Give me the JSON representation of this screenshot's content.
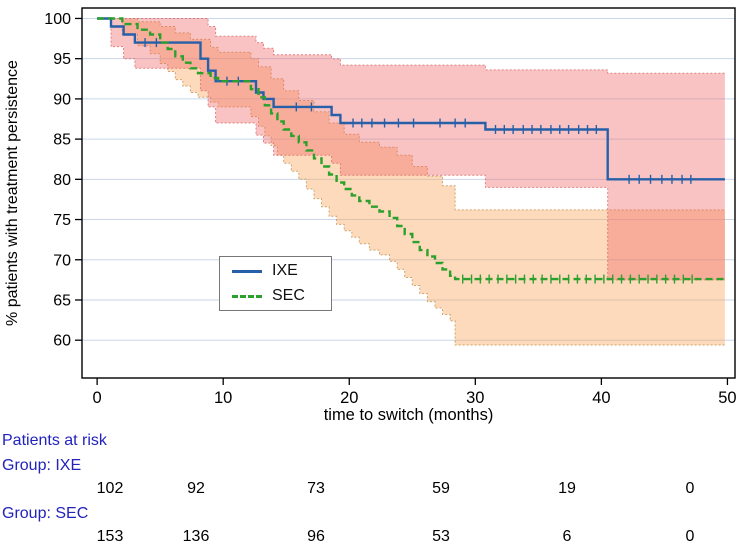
{
  "chart_data": {
    "type": "line",
    "subtype": "kaplan-meier-step-with-ci",
    "title": "",
    "xlabel": "time to switch (months)",
    "ylabel": "% patients with treatment persistence",
    "xlim": [
      -1.2,
      50.6
    ],
    "ylim": [
      55.3,
      101.3
    ],
    "xticks": [
      0,
      10,
      20,
      30,
      40,
      50
    ],
    "yticks": [
      60,
      65,
      70,
      75,
      80,
      85,
      90,
      95,
      100
    ],
    "grid": "horizontal",
    "grid_color": "#c9d6ea",
    "axis_color": "#000000",
    "legend": {
      "position": "inside-lower-left-center",
      "entries": [
        {
          "label": "IXE",
          "style": "solid"
        },
        {
          "label": "SEC",
          "style": "dashed"
        }
      ]
    },
    "series": [
      {
        "name": "IXE",
        "line_color": "#2760a8",
        "line_style": "solid",
        "band_color": "rgba(239,106,106,0.40)",
        "band_edge_color": "rgba(224,110,110,0.85)",
        "steps": [
          [
            0,
            100
          ],
          [
            1.1,
            99
          ],
          [
            2.1,
            98
          ],
          [
            3,
            97
          ],
          [
            8.2,
            95
          ],
          [
            8.8,
            93.5
          ],
          [
            9.4,
            92.2
          ],
          [
            12.6,
            90.8
          ],
          [
            13.2,
            90
          ],
          [
            14,
            89
          ],
          [
            18.6,
            88
          ],
          [
            19.3,
            87
          ],
          [
            30.8,
            86.2
          ],
          [
            40.5,
            80
          ],
          [
            49.8,
            80
          ]
        ],
        "ci_upper": [
          [
            0,
            100
          ],
          [
            8.2,
            100
          ],
          [
            8.8,
            99
          ],
          [
            9.4,
            97.8
          ],
          [
            12.6,
            97
          ],
          [
            13.2,
            96.3
          ],
          [
            14,
            95.5
          ],
          [
            18.6,
            95
          ],
          [
            19.3,
            94.2
          ],
          [
            30.8,
            93.6
          ],
          [
            40.5,
            93.2
          ],
          [
            49.8,
            93.2
          ]
        ],
        "ci_lower": [
          [
            0,
            100
          ],
          [
            1.1,
            96.5
          ],
          [
            2.1,
            95
          ],
          [
            3,
            93.8
          ],
          [
            8.2,
            91
          ],
          [
            8.8,
            89
          ],
          [
            9.4,
            87
          ],
          [
            12.6,
            85.5
          ],
          [
            13.2,
            84.5
          ],
          [
            14,
            83
          ],
          [
            18.6,
            82
          ],
          [
            19.3,
            80.5
          ],
          [
            30.8,
            79
          ],
          [
            40.5,
            67.5
          ],
          [
            49.8,
            67.5
          ]
        ],
        "censor_marks": [
          [
            3.8,
            97
          ],
          [
            4.7,
            97
          ],
          [
            10.3,
            92.2
          ],
          [
            11.2,
            92.2
          ],
          [
            15.8,
            89
          ],
          [
            17,
            89
          ],
          [
            20.3,
            87
          ],
          [
            21,
            87
          ],
          [
            21.8,
            87
          ],
          [
            22.8,
            87
          ],
          [
            23.9,
            87
          ],
          [
            25.1,
            87
          ],
          [
            27.2,
            87
          ],
          [
            28.4,
            87
          ],
          [
            29.2,
            87
          ],
          [
            31.6,
            86.2
          ],
          [
            32.3,
            86.2
          ],
          [
            33,
            86.2
          ],
          [
            33.8,
            86.2
          ],
          [
            34.5,
            86.2
          ],
          [
            35.2,
            86.2
          ],
          [
            36,
            86.2
          ],
          [
            36.7,
            86.2
          ],
          [
            37.4,
            86.2
          ],
          [
            38.2,
            86.2
          ],
          [
            38.9,
            86.2
          ],
          [
            39.6,
            86.2
          ],
          [
            42.2,
            80
          ],
          [
            43,
            80
          ],
          [
            43.9,
            80
          ],
          [
            44.8,
            80
          ],
          [
            45.6,
            80
          ],
          [
            46.4,
            80
          ],
          [
            47.1,
            80
          ]
        ]
      },
      {
        "name": "SEC",
        "line_color": "#2ca02c",
        "line_style": "dashed",
        "band_color": "rgba(247,166,94,0.42)",
        "band_edge_color": "rgba(200,150,85,0.85)",
        "steps": [
          [
            0,
            100
          ],
          [
            2,
            99.3
          ],
          [
            3.2,
            98.6
          ],
          [
            4.2,
            98
          ],
          [
            5,
            97
          ],
          [
            5.6,
            96.2
          ],
          [
            6.2,
            95.3
          ],
          [
            6.8,
            94.5
          ],
          [
            7.4,
            93.8
          ],
          [
            8,
            93.2
          ],
          [
            9,
            92.6
          ],
          [
            9.6,
            92.2
          ],
          [
            12.2,
            91.2
          ],
          [
            12.8,
            90.2
          ],
          [
            13.3,
            89.2
          ],
          [
            13.8,
            88.2
          ],
          [
            14.3,
            87.2
          ],
          [
            14.8,
            86.2
          ],
          [
            15.4,
            85.4
          ],
          [
            16,
            84.6
          ],
          [
            16.6,
            83.6
          ],
          [
            17.2,
            82.6
          ],
          [
            17.8,
            81.6
          ],
          [
            18.4,
            80.6
          ],
          [
            19,
            79.6
          ],
          [
            19.6,
            78.8
          ],
          [
            20.2,
            78
          ],
          [
            20.8,
            77.3
          ],
          [
            21.6,
            76.6
          ],
          [
            22.4,
            76
          ],
          [
            23.2,
            75.2
          ],
          [
            23.8,
            74.2
          ],
          [
            24.4,
            73.2
          ],
          [
            25,
            72.2
          ],
          [
            25.6,
            71.2
          ],
          [
            26.2,
            70.4
          ],
          [
            26.8,
            69.6
          ],
          [
            27.4,
            68.8
          ],
          [
            28,
            68
          ],
          [
            28.4,
            67.6
          ],
          [
            49.8,
            67.6
          ]
        ],
        "ci_upper": [
          [
            0,
            100
          ],
          [
            3.2,
            99.6
          ],
          [
            5,
            99
          ],
          [
            6.2,
            98.2
          ],
          [
            7.4,
            97.4
          ],
          [
            9,
            96.4
          ],
          [
            9.6,
            95.8
          ],
          [
            12.2,
            95
          ],
          [
            12.8,
            94
          ],
          [
            13.8,
            92.5
          ],
          [
            14.8,
            91
          ],
          [
            16,
            89.8
          ],
          [
            17.2,
            88.4
          ],
          [
            18.4,
            87
          ],
          [
            19.6,
            85.6
          ],
          [
            20.8,
            84.6
          ],
          [
            22.4,
            84
          ],
          [
            23.8,
            83
          ],
          [
            25,
            81.6
          ],
          [
            26.2,
            80.4
          ],
          [
            27.4,
            79.2
          ],
          [
            28.4,
            76.2
          ],
          [
            49.8,
            76.2
          ]
        ],
        "ci_lower": [
          [
            0,
            100
          ],
          [
            2,
            98
          ],
          [
            3.2,
            96.6
          ],
          [
            4.2,
            95.6
          ],
          [
            5,
            94.4
          ],
          [
            5.6,
            93.4
          ],
          [
            6.2,
            92.4
          ],
          [
            6.8,
            91.6
          ],
          [
            7.4,
            90.8
          ],
          [
            8,
            90.2
          ],
          [
            9,
            89.6
          ],
          [
            9.6,
            89
          ],
          [
            12.2,
            87.8
          ],
          [
            12.8,
            86.6
          ],
          [
            13.3,
            85.4
          ],
          [
            13.8,
            84.2
          ],
          [
            14.3,
            83
          ],
          [
            14.8,
            82
          ],
          [
            15.4,
            81
          ],
          [
            16,
            80
          ],
          [
            16.6,
            78.8
          ],
          [
            17.2,
            77.6
          ],
          [
            17.8,
            76.6
          ],
          [
            18.4,
            75.4
          ],
          [
            19,
            74.4
          ],
          [
            19.6,
            73.6
          ],
          [
            20.2,
            72.8
          ],
          [
            20.8,
            72
          ],
          [
            21.6,
            71.2
          ],
          [
            22.4,
            70.6
          ],
          [
            23.2,
            69.8
          ],
          [
            23.8,
            68.8
          ],
          [
            24.4,
            67.8
          ],
          [
            25,
            66.8
          ],
          [
            25.6,
            65.8
          ],
          [
            26.2,
            64.8
          ],
          [
            26.8,
            64
          ],
          [
            27.4,
            63.2
          ],
          [
            28,
            62.4
          ],
          [
            28.4,
            59.4
          ],
          [
            49.8,
            59.4
          ]
        ],
        "censor_marks": [
          [
            29,
            67.6
          ],
          [
            29.7,
            67.6
          ],
          [
            30.4,
            67.6
          ],
          [
            31.1,
            67.6
          ],
          [
            31.8,
            67.6
          ],
          [
            32.5,
            67.6
          ],
          [
            33.2,
            67.6
          ],
          [
            33.9,
            67.6
          ],
          [
            34.6,
            67.6
          ],
          [
            35.3,
            67.6
          ],
          [
            36,
            67.6
          ],
          [
            36.7,
            67.6
          ],
          [
            37.4,
            67.6
          ],
          [
            38.1,
            67.6
          ],
          [
            38.8,
            67.6
          ],
          [
            39.5,
            67.6
          ],
          [
            40.2,
            67.6
          ],
          [
            40.9,
            67.6
          ],
          [
            41.6,
            67.6
          ],
          [
            42.3,
            67.6
          ],
          [
            43,
            67.6
          ],
          [
            43.7,
            67.6
          ],
          [
            44.4,
            67.6
          ],
          [
            45.1,
            67.6
          ],
          [
            45.8,
            67.6
          ],
          [
            46.5,
            67.6
          ],
          [
            47.2,
            67.6
          ]
        ]
      }
    ]
  },
  "at_risk": {
    "title": "Patients at risk",
    "text_color": "#2222bd",
    "times": [
      0,
      10,
      20,
      30,
      40,
      50
    ],
    "groups": [
      {
        "label": "Group: IXE",
        "counts": [
          "102",
          "92",
          "73",
          "59",
          "19",
          "0"
        ]
      },
      {
        "label": "Group: SEC",
        "counts": [
          "153",
          "136",
          "96",
          "53",
          "6",
          "0"
        ]
      }
    ]
  }
}
